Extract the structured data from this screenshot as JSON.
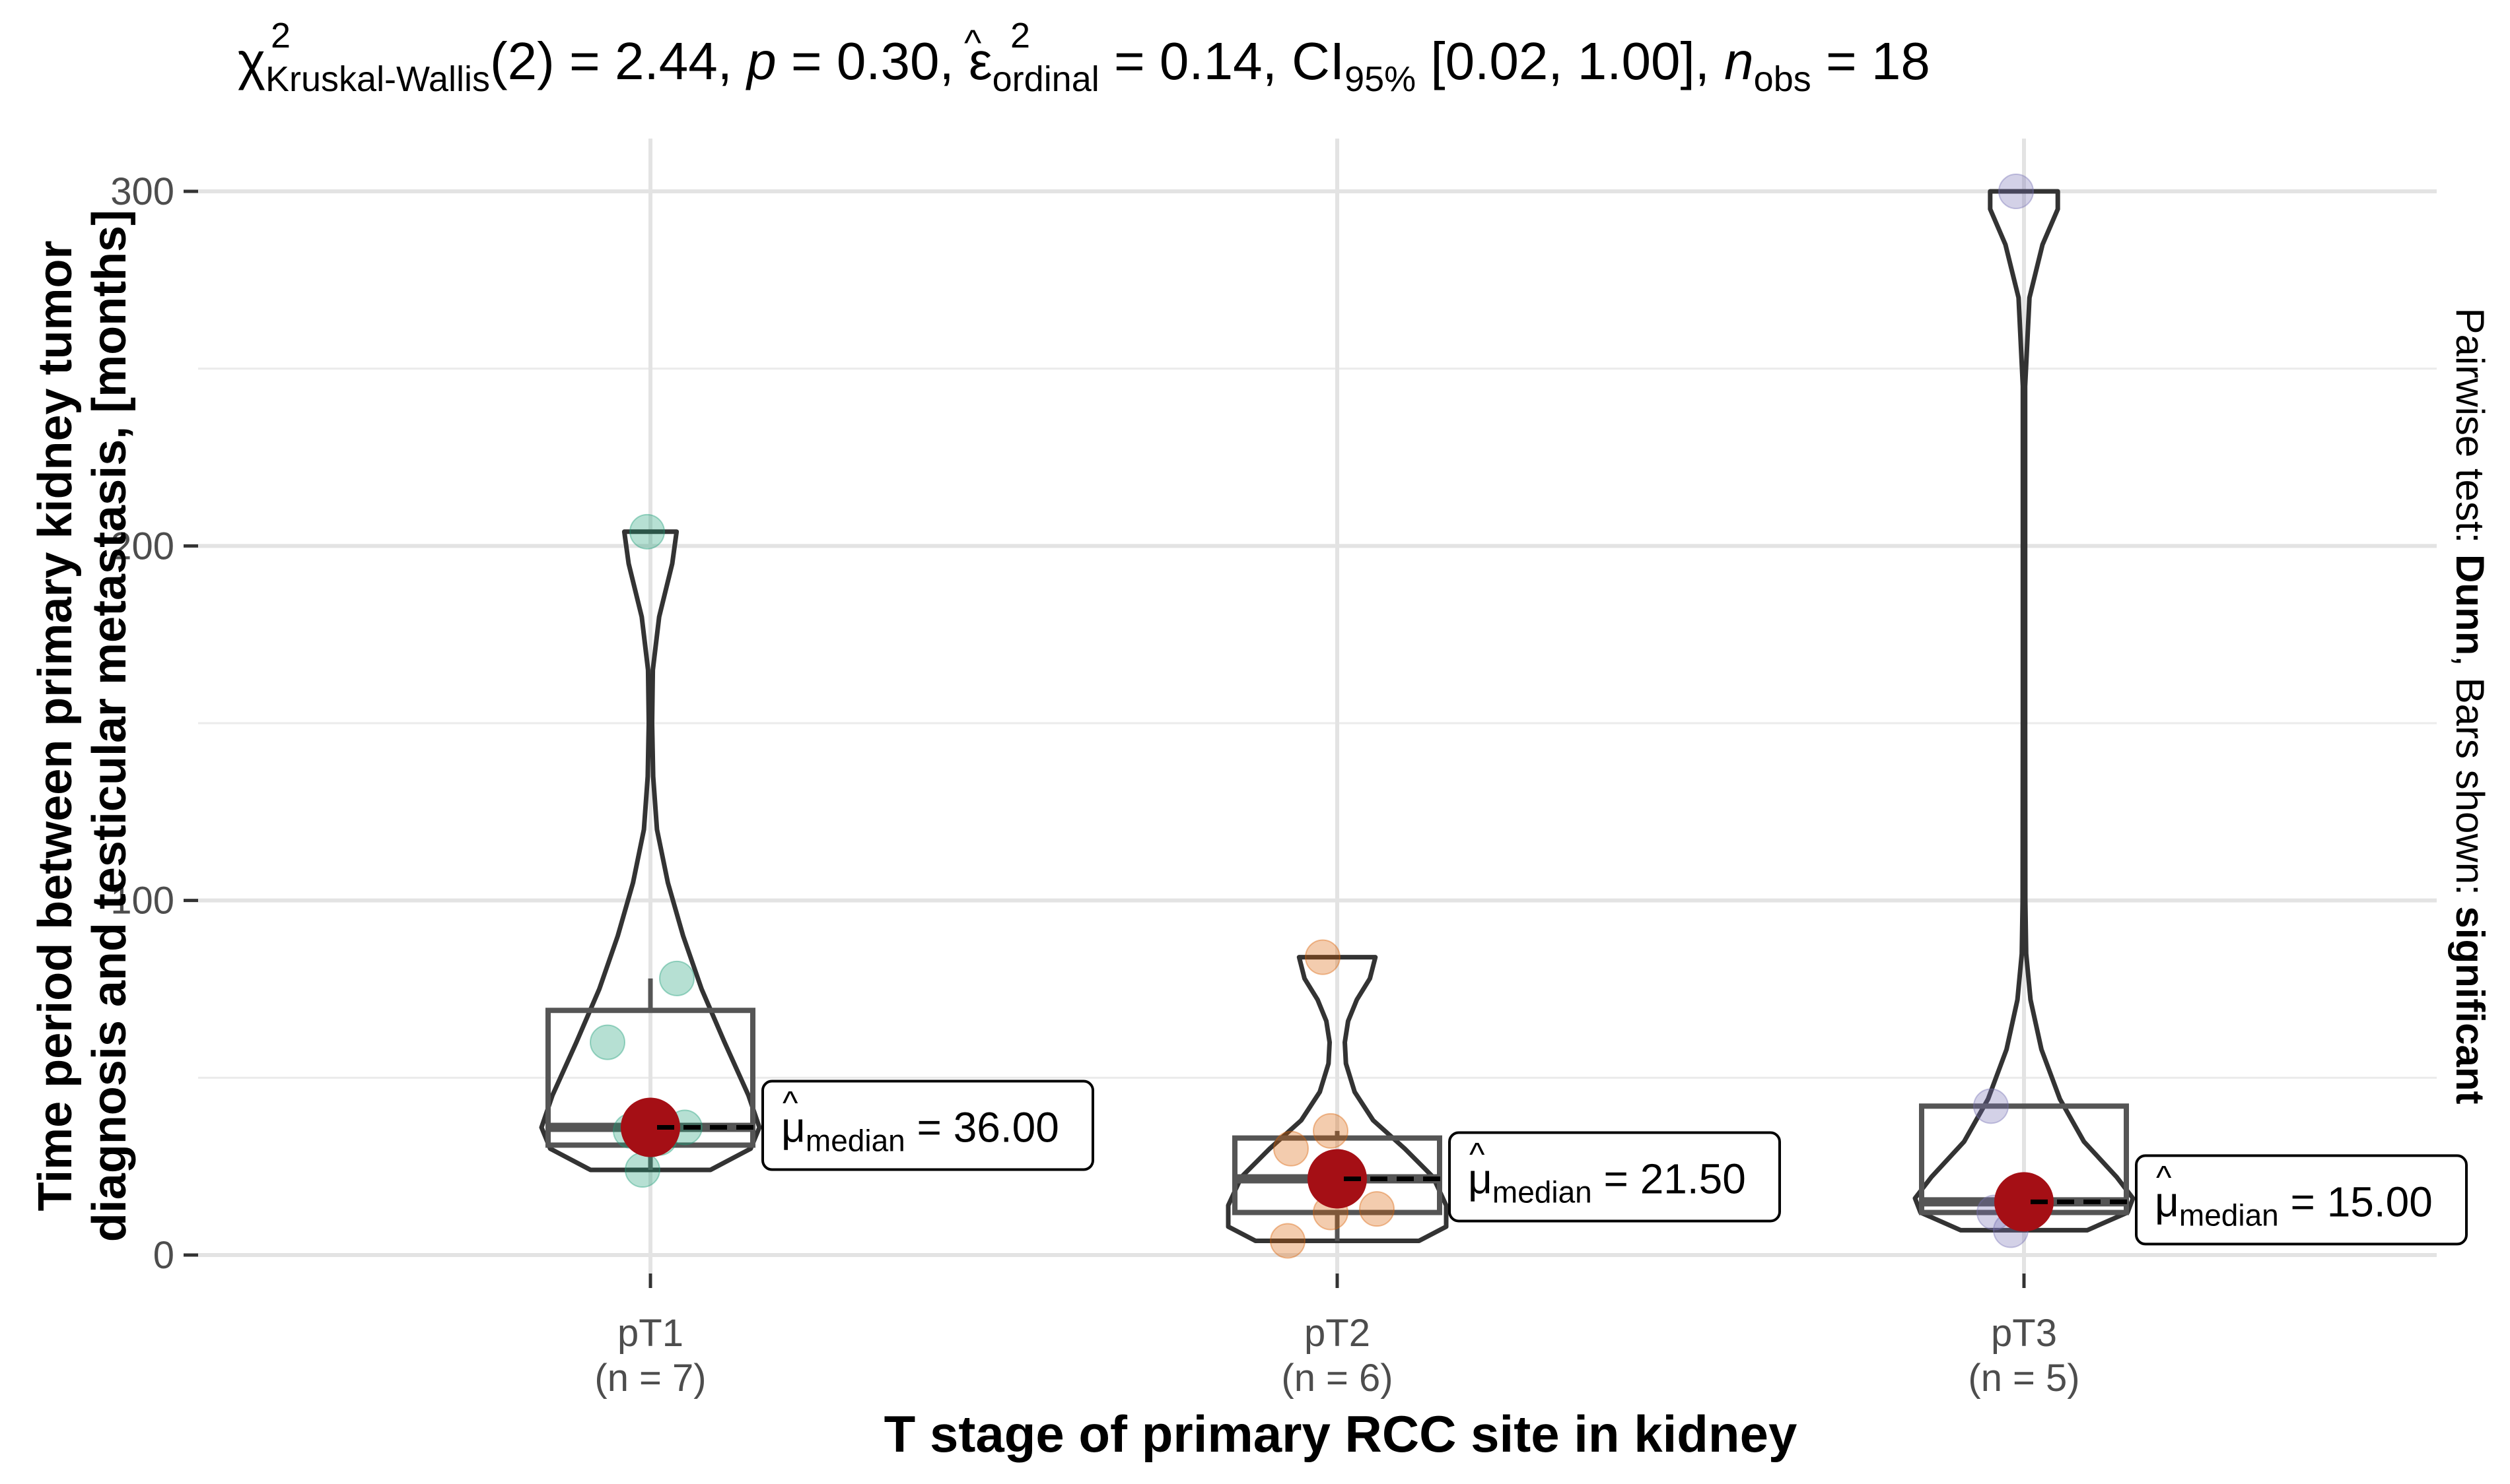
{
  "chart_data": {
    "type": "violin-box-scatter",
    "title": {
      "stat_symbol": "χ",
      "stat_sup": "2",
      "stat_sub": "Kruskal-Wallis",
      "df_text": "(2) = 2.44, ",
      "p_symbol": "p",
      "p_text": " = 0.30, ",
      "es_symbol": "ε",
      "es_sup": "2",
      "es_sub": "ordinal",
      "es_text": " = 0.14, CI",
      "ci_sub": "95%",
      "ci_text": " [0.02, 1.00], ",
      "n_symbol": "n",
      "n_sub": "obs",
      "n_text": " = 18"
    },
    "xlabel": "T stage of primary RCC site in kidney",
    "ylabel_line1": "Time period between primary kidney tumor",
    "ylabel_line2": "diagnosis and testicular metastasis, [months]",
    "caption": {
      "prefix": "Pairwise test: ",
      "test": "Dunn",
      "middle": ", Bars shown: ",
      "bars": "significant"
    },
    "ylim": [
      -3,
      312
    ],
    "yticks": [
      0,
      100,
      200,
      300
    ],
    "ytick_labels": [
      "0",
      "100",
      "200",
      "300"
    ],
    "grid": true,
    "groups": [
      {
        "name": "pT1",
        "n_label": "(n = 7)",
        "color": "#1B9E77",
        "points": [
          24,
          33,
          35,
          36,
          60,
          78,
          204
        ],
        "box": {
          "q1": 31,
          "median": 36,
          "q3": 69,
          "whisker_low": 24,
          "whisker_high": 78
        },
        "median_label_mu": "μ",
        "median_label_sub": "median",
        "median_label_value": " = 36.00",
        "violin": [
          [
            24,
            0.55
          ],
          [
            30,
            0.92
          ],
          [
            36,
            1.0
          ],
          [
            45,
            0.9
          ],
          [
            60,
            0.68
          ],
          [
            75,
            0.47
          ],
          [
            90,
            0.3
          ],
          [
            105,
            0.16
          ],
          [
            120,
            0.06
          ],
          [
            135,
            0.025
          ],
          [
            150,
            0.015
          ],
          [
            165,
            0.022
          ],
          [
            180,
            0.08
          ],
          [
            195,
            0.2
          ],
          [
            204,
            0.24
          ]
        ]
      },
      {
        "name": "pT2",
        "n_label": "(n = 6)",
        "color": "#D95F02",
        "points": [
          4,
          12,
          13,
          30,
          35,
          84
        ],
        "box": {
          "q1": 12,
          "median": 21.5,
          "q3": 33,
          "whisker_low": 4,
          "whisker_high": 35
        },
        "median_label_mu": "μ",
        "median_label_sub": "median",
        "median_label_value": " = 21.50",
        "violin": [
          [
            4,
            0.75
          ],
          [
            8,
            1.0
          ],
          [
            14,
            1.0
          ],
          [
            22,
            0.88
          ],
          [
            30,
            0.62
          ],
          [
            38,
            0.33
          ],
          [
            46,
            0.16
          ],
          [
            54,
            0.08
          ],
          [
            60,
            0.07
          ],
          [
            66,
            0.1
          ],
          [
            72,
            0.18
          ],
          [
            78,
            0.3
          ],
          [
            84,
            0.35
          ]
        ]
      },
      {
        "name": "pT3",
        "n_label": "(n = 5)",
        "color": "#7570B3",
        "points": [
          7,
          12,
          15,
          42,
          300
        ],
        "box": {
          "q1": 12,
          "median": 15,
          "q3": 42,
          "whisker_low": 7,
          "whisker_high": 42
        },
        "median_label_mu": "μ",
        "median_label_sub": "median",
        "median_label_value": " = 15.00",
        "violin": [
          [
            7,
            0.58
          ],
          [
            12,
            0.95
          ],
          [
            16,
            1.0
          ],
          [
            22,
            0.85
          ],
          [
            32,
            0.55
          ],
          [
            44,
            0.33
          ],
          [
            58,
            0.16
          ],
          [
            72,
            0.06
          ],
          [
            85,
            0.02
          ],
          [
            100,
            0.012
          ],
          [
            150,
            0.01
          ],
          [
            200,
            0.01
          ],
          [
            245,
            0.01
          ],
          [
            270,
            0.05
          ],
          [
            285,
            0.17
          ],
          [
            295,
            0.31
          ],
          [
            300,
            0.31
          ]
        ]
      }
    ],
    "median_point_color": "#A50F15"
  }
}
